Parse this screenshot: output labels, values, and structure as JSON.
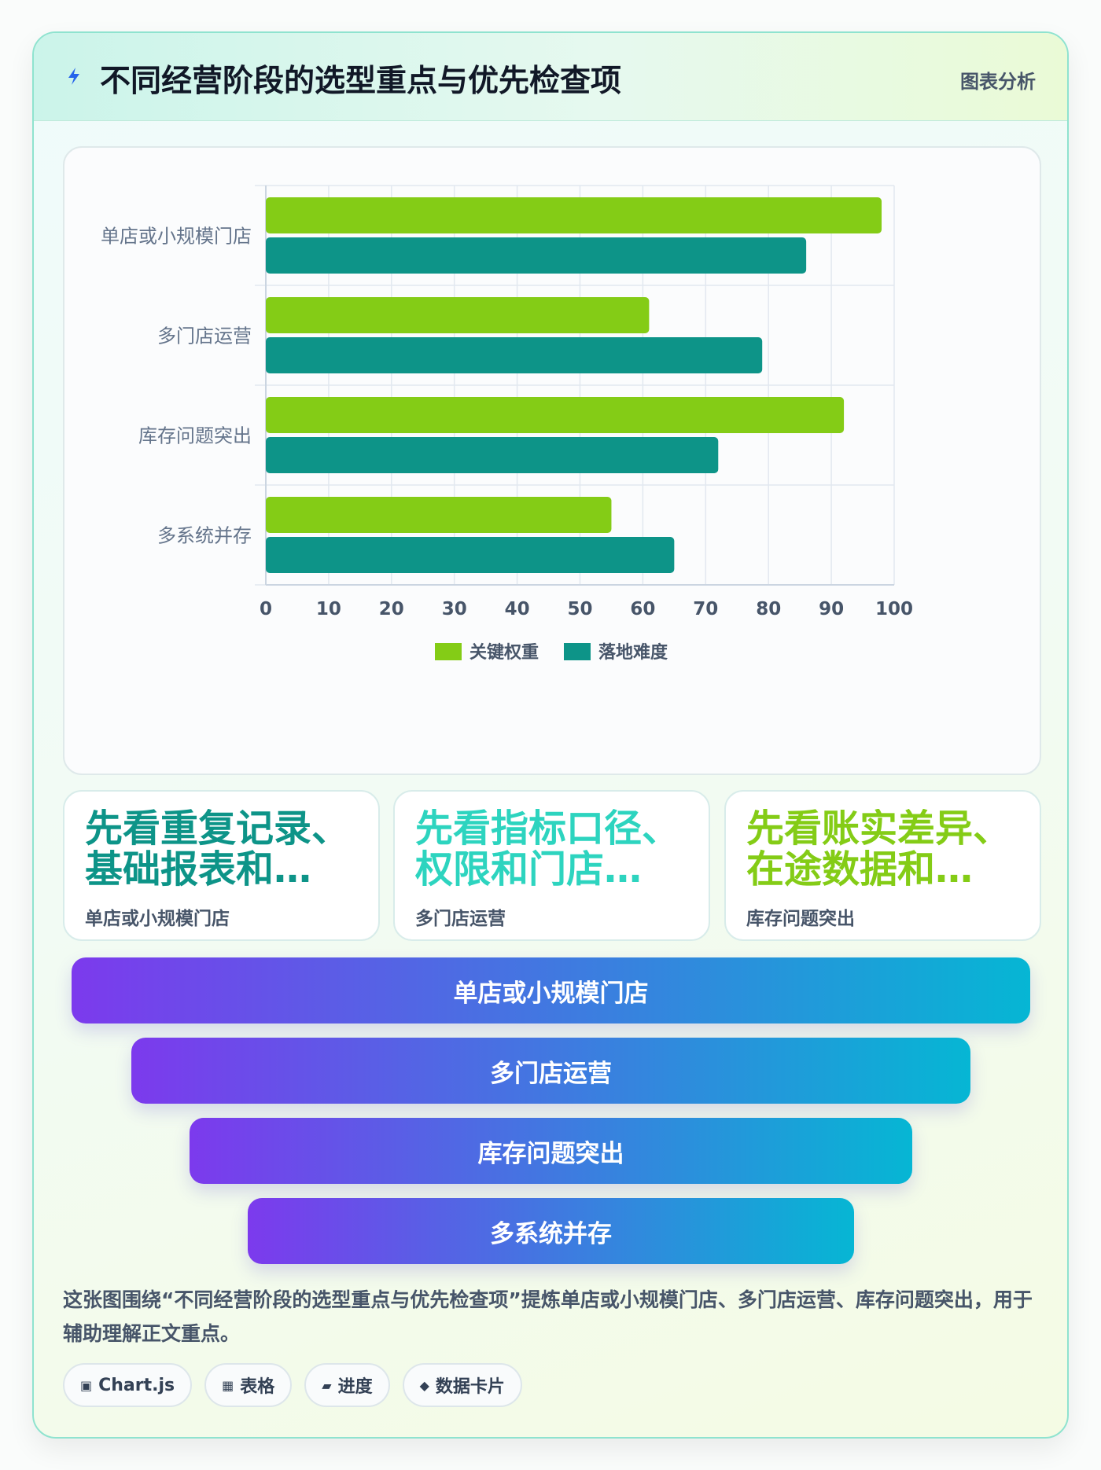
{
  "header": {
    "title": "不同经营阶段的选型重点与优先检查项",
    "tag": "图表分析"
  },
  "chart_data": {
    "type": "bar",
    "orientation": "horizontal",
    "categories": [
      "单店或小规模门店",
      "多门店运营",
      "库存问题突出",
      "多系统并存"
    ],
    "series": [
      {
        "name": "关键权重",
        "values": [
          98,
          61,
          92,
          55
        ],
        "color": "#84cc16"
      },
      {
        "name": "落地难度",
        "values": [
          86,
          79,
          72,
          65
        ],
        "color": "#0d9488"
      }
    ],
    "xlim": [
      0,
      100
    ],
    "xticks": [
      0,
      10,
      20,
      30,
      40,
      50,
      60,
      70,
      80,
      90,
      100
    ],
    "grid": true,
    "legend_position": "bottom"
  },
  "stat_cards": [
    {
      "value": "先看重复记录、基础报表和…",
      "label": "单店或小规模门店",
      "color": "#0d9488"
    },
    {
      "value": "先看指标口径、权限和门店…",
      "label": "多门店运营",
      "color": "#2dd4bf"
    },
    {
      "value": "先看账实差异、在途数据和…",
      "label": "库存问题突出",
      "color": "#84cc16"
    }
  ],
  "funnel": [
    {
      "label": "单店或小规模门店"
    },
    {
      "label": "多门店运营"
    },
    {
      "label": "库存问题突出"
    },
    {
      "label": "多系统并存"
    }
  ],
  "description": "这张图围绕“不同经营阶段的选型重点与优先检查项”提炼单店或小规模门店、多门店运营、库存问题突出，用于辅助理解正文重点。",
  "tags": [
    {
      "icon": "▣",
      "icon_name": "chart-icon",
      "label": "Chart.js"
    },
    {
      "icon": "▦",
      "icon_name": "table-icon",
      "label": "表格"
    },
    {
      "icon": "▰",
      "icon_name": "progress-icon",
      "label": "进度"
    },
    {
      "icon": "◆",
      "icon_name": "data-card-icon",
      "label": "数据卡片"
    }
  ]
}
